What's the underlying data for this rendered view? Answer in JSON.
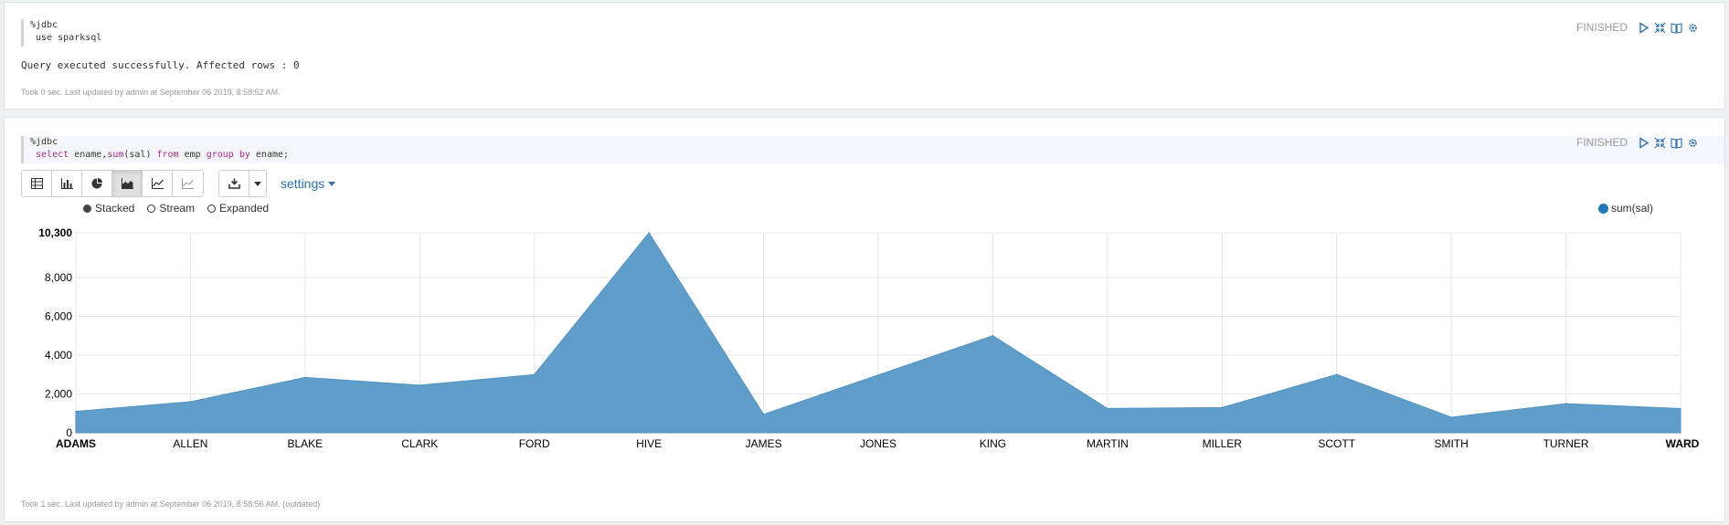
{
  "paragraph1": {
    "code_line1": "%jdbc",
    "code_line2": " use sparksql",
    "status": "FINISHED",
    "result": "Query executed successfully. Affected rows : 0",
    "footer": "Took 0 sec. Last updated by admin at September 06 2019, 8:58:52 AM."
  },
  "paragraph2": {
    "code_line1": "%jdbc",
    "code_select": "select",
    "code_part1": " ename,",
    "code_sum": "sum",
    "code_part2": "(sal) ",
    "code_from": "from",
    "code_part3": " emp ",
    "code_group": "group",
    "code_space": " ",
    "code_by": "by",
    "code_part4": " ename;",
    "status": "FINISHED",
    "settings_label": "settings",
    "modes": [
      "Stacked",
      "Stream",
      "Expanded"
    ],
    "footer": "Took 1 sec. Last updated by admin at September 06 2019, 8:58:56 AM. (outdated)"
  },
  "icons": {
    "run": "play-icon",
    "hide": "collapse-icon",
    "book": "book-icon",
    "settings": "gear-icon",
    "views": [
      "table-icon",
      "bar-chart-icon",
      "pie-chart-icon",
      "area-chart-icon",
      "line-chart-icon",
      "scatter-chart-icon"
    ],
    "download": "download-icon",
    "caret": "caret-down-icon"
  },
  "colors": {
    "area": "#4f93c3",
    "legend": "#1f77b4",
    "link": "#3071a9"
  },
  "chart_data": {
    "type": "area",
    "mode": "Stacked",
    "categories": [
      "ADAMS",
      "ALLEN",
      "BLAKE",
      "CLARK",
      "FORD",
      "HIVE",
      "JAMES",
      "JONES",
      "KING",
      "MARTIN",
      "MILLER",
      "SCOTT",
      "SMITH",
      "TURNER",
      "WARD"
    ],
    "series": [
      {
        "name": "sum(sal)",
        "values": [
          1100,
          1600,
          2850,
          2450,
          3000,
          10300,
          950,
          2975,
          5000,
          1250,
          1300,
          3000,
          800,
          1500,
          1250
        ]
      }
    ],
    "ylim": [
      0,
      10300
    ],
    "yticks": [
      "0",
      "2,000",
      "4,000",
      "6,000",
      "8,000",
      "10,300"
    ],
    "grid": true,
    "legend_position": "top-right"
  }
}
